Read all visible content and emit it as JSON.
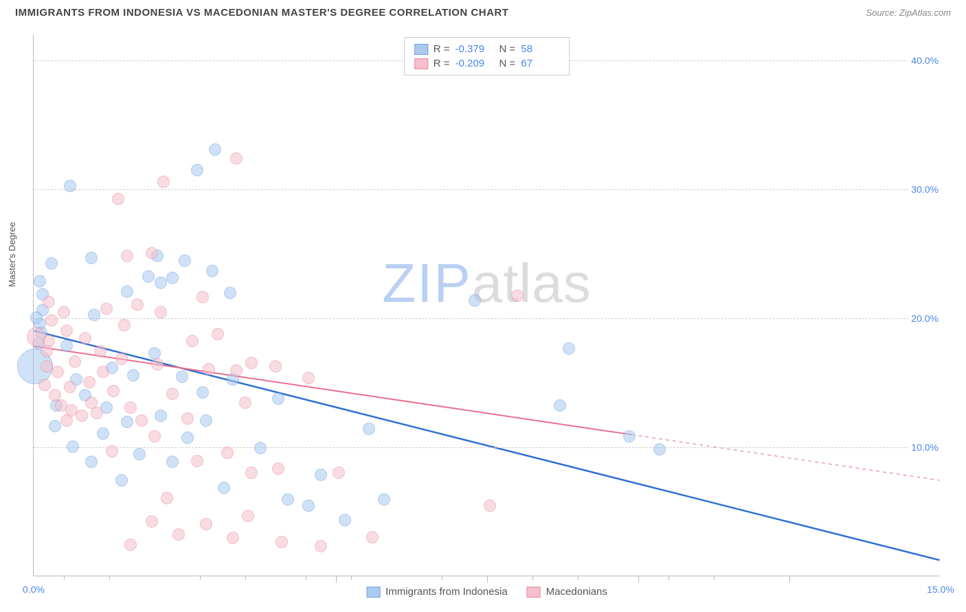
{
  "title": "IMMIGRANTS FROM INDONESIA VS MACEDONIAN MASTER'S DEGREE CORRELATION CHART",
  "source": "Source: ZipAtlas.com",
  "ylabel": "Master's Degree",
  "watermark": {
    "part1": "ZIP",
    "part2": "atlas"
  },
  "chart": {
    "type": "scatter",
    "xlim": [
      0,
      15
    ],
    "ylim": [
      0,
      42
    ],
    "background_color": "#ffffff",
    "grid_color": "#cccccc",
    "grid_dash": "4,4",
    "axis_color": "#bbbbbb",
    "tick_label_color": "#4a86e8",
    "tick_fontsize": 14,
    "y_gridlines": [
      10,
      20,
      30,
      40
    ],
    "y_tick_labels": [
      "10.0%",
      "20.0%",
      "30.0%",
      "40.0%"
    ],
    "x_ticks_minor": [
      0.5,
      1.25,
      2.75,
      3.5,
      4.5,
      5.25,
      6.75,
      8.25,
      9.0,
      10.5,
      11.25
    ],
    "x_labels": [
      {
        "x": 0,
        "text": "0.0%"
      },
      {
        "x": 15,
        "text": "15.0%"
      }
    ],
    "x_major_ticks": [
      5.0,
      7.5,
      10.0,
      12.5
    ]
  },
  "series": [
    {
      "id": "indonesia",
      "label": "Immigrants from Indonesia",
      "fill": "#a9c9ef",
      "stroke": "#6fa0dd",
      "fill_opacity": 0.55,
      "marker_size": 18,
      "reg_color": "#2f6fd0",
      "reg_width": 2.5,
      "reg_start_y": 19.0,
      "reg_end_y": 1.2,
      "reg_solid_end_x": 15.0,
      "R": "-0.379",
      "N": "58",
      "points": [
        {
          "x": 0.02,
          "y": 16.2,
          "size": 52
        },
        {
          "x": 0.6,
          "y": 30.2
        },
        {
          "x": 2.7,
          "y": 31.4
        },
        {
          "x": 3.0,
          "y": 33.0
        },
        {
          "x": 0.15,
          "y": 21.8
        },
        {
          "x": 0.15,
          "y": 20.6
        },
        {
          "x": 0.1,
          "y": 19.5
        },
        {
          "x": 0.12,
          "y": 18.8
        },
        {
          "x": 0.1,
          "y": 22.8
        },
        {
          "x": 0.95,
          "y": 24.6
        },
        {
          "x": 1.0,
          "y": 20.2
        },
        {
          "x": 1.55,
          "y": 22.0
        },
        {
          "x": 1.9,
          "y": 23.2
        },
        {
          "x": 2.05,
          "y": 24.8
        },
        {
          "x": 2.1,
          "y": 22.7
        },
        {
          "x": 2.3,
          "y": 23.1
        },
        {
          "x": 2.5,
          "y": 24.4
        },
        {
          "x": 3.25,
          "y": 21.9
        },
        {
          "x": 2.95,
          "y": 23.6
        },
        {
          "x": 0.55,
          "y": 17.8
        },
        {
          "x": 0.7,
          "y": 15.2
        },
        {
          "x": 0.85,
          "y": 14.0
        },
        {
          "x": 1.3,
          "y": 16.1
        },
        {
          "x": 1.65,
          "y": 15.5
        },
        {
          "x": 1.2,
          "y": 13.0
        },
        {
          "x": 1.15,
          "y": 11.0
        },
        {
          "x": 1.55,
          "y": 11.9
        },
        {
          "x": 1.45,
          "y": 7.4
        },
        {
          "x": 1.75,
          "y": 9.4
        },
        {
          "x": 2.3,
          "y": 8.8
        },
        {
          "x": 2.1,
          "y": 12.4
        },
        {
          "x": 2.55,
          "y": 10.7
        },
        {
          "x": 2.8,
          "y": 14.2
        },
        {
          "x": 2.85,
          "y": 12.0
        },
        {
          "x": 3.75,
          "y": 9.9
        },
        {
          "x": 3.15,
          "y": 6.8
        },
        {
          "x": 4.05,
          "y": 13.7
        },
        {
          "x": 4.2,
          "y": 5.9
        },
        {
          "x": 4.75,
          "y": 7.8
        },
        {
          "x": 4.55,
          "y": 5.4
        },
        {
          "x": 5.15,
          "y": 4.3
        },
        {
          "x": 5.55,
          "y": 11.4
        },
        {
          "x": 5.8,
          "y": 5.9
        },
        {
          "x": 7.3,
          "y": 21.3
        },
        {
          "x": 8.85,
          "y": 17.6
        },
        {
          "x": 8.7,
          "y": 13.2
        },
        {
          "x": 9.85,
          "y": 10.8
        },
        {
          "x": 10.35,
          "y": 9.8
        },
        {
          "x": 0.38,
          "y": 13.2
        },
        {
          "x": 0.35,
          "y": 11.6
        },
        {
          "x": 0.65,
          "y": 10.0
        },
        {
          "x": 0.3,
          "y": 24.2
        },
        {
          "x": 0.05,
          "y": 20.0
        },
        {
          "x": 0.08,
          "y": 18.0
        },
        {
          "x": 2.0,
          "y": 17.2
        },
        {
          "x": 2.45,
          "y": 15.4
        },
        {
          "x": 3.3,
          "y": 15.2
        },
        {
          "x": 0.95,
          "y": 8.8
        }
      ]
    },
    {
      "id": "macedonians",
      "label": "Macedonians",
      "fill": "#f5bfcb",
      "stroke": "#e98aa2",
      "fill_opacity": 0.55,
      "marker_size": 18,
      "reg_color": "#e86f8e",
      "reg_width": 2,
      "reg_start_y": 17.8,
      "reg_end_y": 7.4,
      "reg_solid_end_x": 9.9,
      "R": "-0.209",
      "N": "67",
      "points": [
        {
          "x": 0.05,
          "y": 18.5,
          "size": 28
        },
        {
          "x": 3.35,
          "y": 32.3
        },
        {
          "x": 2.15,
          "y": 30.5
        },
        {
          "x": 1.4,
          "y": 29.2
        },
        {
          "x": 0.25,
          "y": 21.2
        },
        {
          "x": 0.3,
          "y": 19.8
        },
        {
          "x": 0.25,
          "y": 18.2
        },
        {
          "x": 0.22,
          "y": 17.4
        },
        {
          "x": 0.5,
          "y": 20.4
        },
        {
          "x": 0.55,
          "y": 19.0
        },
        {
          "x": 0.6,
          "y": 14.6
        },
        {
          "x": 0.85,
          "y": 18.4
        },
        {
          "x": 0.95,
          "y": 13.4
        },
        {
          "x": 1.1,
          "y": 17.4
        },
        {
          "x": 1.2,
          "y": 20.7
        },
        {
          "x": 1.32,
          "y": 14.3
        },
        {
          "x": 1.55,
          "y": 24.8
        },
        {
          "x": 1.5,
          "y": 19.4
        },
        {
          "x": 1.6,
          "y": 13.0
        },
        {
          "x": 1.72,
          "y": 21.0
        },
        {
          "x": 1.95,
          "y": 25.0
        },
        {
          "x": 2.1,
          "y": 20.4
        },
        {
          "x": 2.05,
          "y": 16.4
        },
        {
          "x": 2.3,
          "y": 14.1
        },
        {
          "x": 2.62,
          "y": 18.2
        },
        {
          "x": 2.8,
          "y": 21.6
        },
        {
          "x": 2.9,
          "y": 16.0
        },
        {
          "x": 3.05,
          "y": 18.7
        },
        {
          "x": 3.35,
          "y": 15.9
        },
        {
          "x": 3.5,
          "y": 13.4
        },
        {
          "x": 3.6,
          "y": 16.5
        },
        {
          "x": 4.0,
          "y": 16.2
        },
        {
          "x": 0.45,
          "y": 13.2
        },
        {
          "x": 0.55,
          "y": 12.0
        },
        {
          "x": 0.8,
          "y": 12.4
        },
        {
          "x": 1.05,
          "y": 12.6
        },
        {
          "x": 1.3,
          "y": 9.6
        },
        {
          "x": 1.6,
          "y": 2.4
        },
        {
          "x": 1.95,
          "y": 4.2
        },
        {
          "x": 2.2,
          "y": 6.0
        },
        {
          "x": 2.4,
          "y": 3.2
        },
        {
          "x": 2.7,
          "y": 8.9
        },
        {
          "x": 2.85,
          "y": 4.0
        },
        {
          "x": 3.2,
          "y": 9.5
        },
        {
          "x": 3.3,
          "y": 2.9
        },
        {
          "x": 3.6,
          "y": 8.0
        },
        {
          "x": 3.55,
          "y": 4.6
        },
        {
          "x": 4.05,
          "y": 8.3
        },
        {
          "x": 4.1,
          "y": 2.6
        },
        {
          "x": 4.55,
          "y": 15.3
        },
        {
          "x": 4.75,
          "y": 2.3
        },
        {
          "x": 5.05,
          "y": 8.0
        },
        {
          "x": 5.6,
          "y": 3.0
        },
        {
          "x": 7.55,
          "y": 5.4
        },
        {
          "x": 8.0,
          "y": 21.7
        },
        {
          "x": 0.4,
          "y": 15.8
        },
        {
          "x": 0.68,
          "y": 16.6
        },
        {
          "x": 0.35,
          "y": 14.0
        },
        {
          "x": 0.92,
          "y": 15.0
        },
        {
          "x": 1.15,
          "y": 15.8
        },
        {
          "x": 1.45,
          "y": 16.8
        },
        {
          "x": 0.22,
          "y": 16.2
        },
        {
          "x": 0.18,
          "y": 14.8
        },
        {
          "x": 0.62,
          "y": 12.8
        },
        {
          "x": 2.0,
          "y": 10.8
        },
        {
          "x": 2.55,
          "y": 12.2
        },
        {
          "x": 1.78,
          "y": 12.0
        }
      ]
    }
  ],
  "legend_top": {
    "R_label": "R =",
    "N_label": "N ="
  }
}
